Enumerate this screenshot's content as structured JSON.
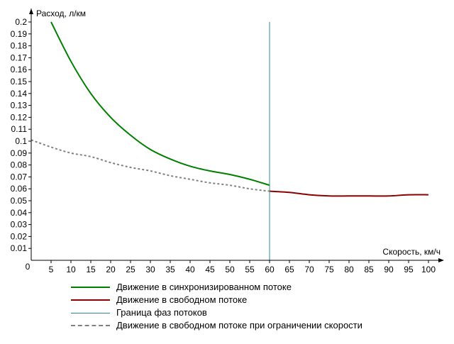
{
  "chart_data": {
    "type": "line",
    "ylabel": "Расход, л/км",
    "xlabel": "Скорость, км/ч",
    "xlim": [
      0,
      100
    ],
    "ylim": [
      0,
      0.2
    ],
    "x_ticks": [
      5,
      10,
      15,
      20,
      25,
      30,
      35,
      40,
      45,
      50,
      55,
      60,
      65,
      70,
      75,
      80,
      85,
      90,
      95,
      100
    ],
    "x_tick_labels": [
      "5",
      "10",
      "15",
      "20",
      "25",
      "30",
      "35",
      "40",
      "45",
      "50",
      "55",
      "60",
      "65",
      "70",
      "75",
      "80",
      "85",
      "90",
      "95",
      "100"
    ],
    "y_ticks": [
      0.01,
      0.02,
      0.03,
      0.04,
      0.05,
      0.06,
      0.07,
      0.08,
      0.09,
      0.1,
      0.11,
      0.12,
      0.13,
      0.14,
      0.15,
      0.16,
      0.17,
      0.18,
      0.19,
      0.2
    ],
    "y_tick_labels": [
      "0.01",
      "0.02",
      "0.03",
      "0.04",
      "0.05",
      "0.06",
      "0.07",
      "0.08",
      "0.09",
      "0.1",
      "0.11",
      "0.12",
      "0.13",
      "0.14",
      "0.15",
      "0.16",
      "0.17",
      "0.18",
      "0.19",
      "0.2"
    ],
    "origin_label": "0",
    "grid": false,
    "legend_position": "bottom",
    "series": [
      {
        "name": "Движение в синхронизированном потоке",
        "color": "#008000",
        "style": "solid",
        "x": [
          5,
          10,
          15,
          20,
          25,
          30,
          35,
          40,
          45,
          50,
          55,
          60
        ],
        "y": [
          0.2,
          0.167,
          0.14,
          0.12,
          0.105,
          0.093,
          0.085,
          0.079,
          0.075,
          0.072,
          0.068,
          0.063
        ]
      },
      {
        "name": "Движение в свободном потоке",
        "color": "#8b0000",
        "style": "solid",
        "x": [
          60,
          65,
          70,
          75,
          80,
          85,
          90,
          95,
          100
        ],
        "y": [
          0.058,
          0.057,
          0.055,
          0.054,
          0.054,
          0.054,
          0.054,
          0.055,
          0.055
        ]
      },
      {
        "name": "Граница фаз потоков",
        "color": "#2e8b9a",
        "style": "vline",
        "x": [
          60,
          60
        ],
        "y": [
          0,
          0.2
        ]
      },
      {
        "name": "Движение в свободном потоке при ограничении скорости",
        "color": "#808080",
        "style": "dashed",
        "x": [
          0,
          5,
          10,
          15,
          20,
          25,
          30,
          35,
          40,
          45,
          50,
          55,
          60
        ],
        "y": [
          0.101,
          0.095,
          0.09,
          0.087,
          0.082,
          0.078,
          0.075,
          0.071,
          0.068,
          0.065,
          0.063,
          0.06,
          0.058
        ]
      }
    ]
  }
}
